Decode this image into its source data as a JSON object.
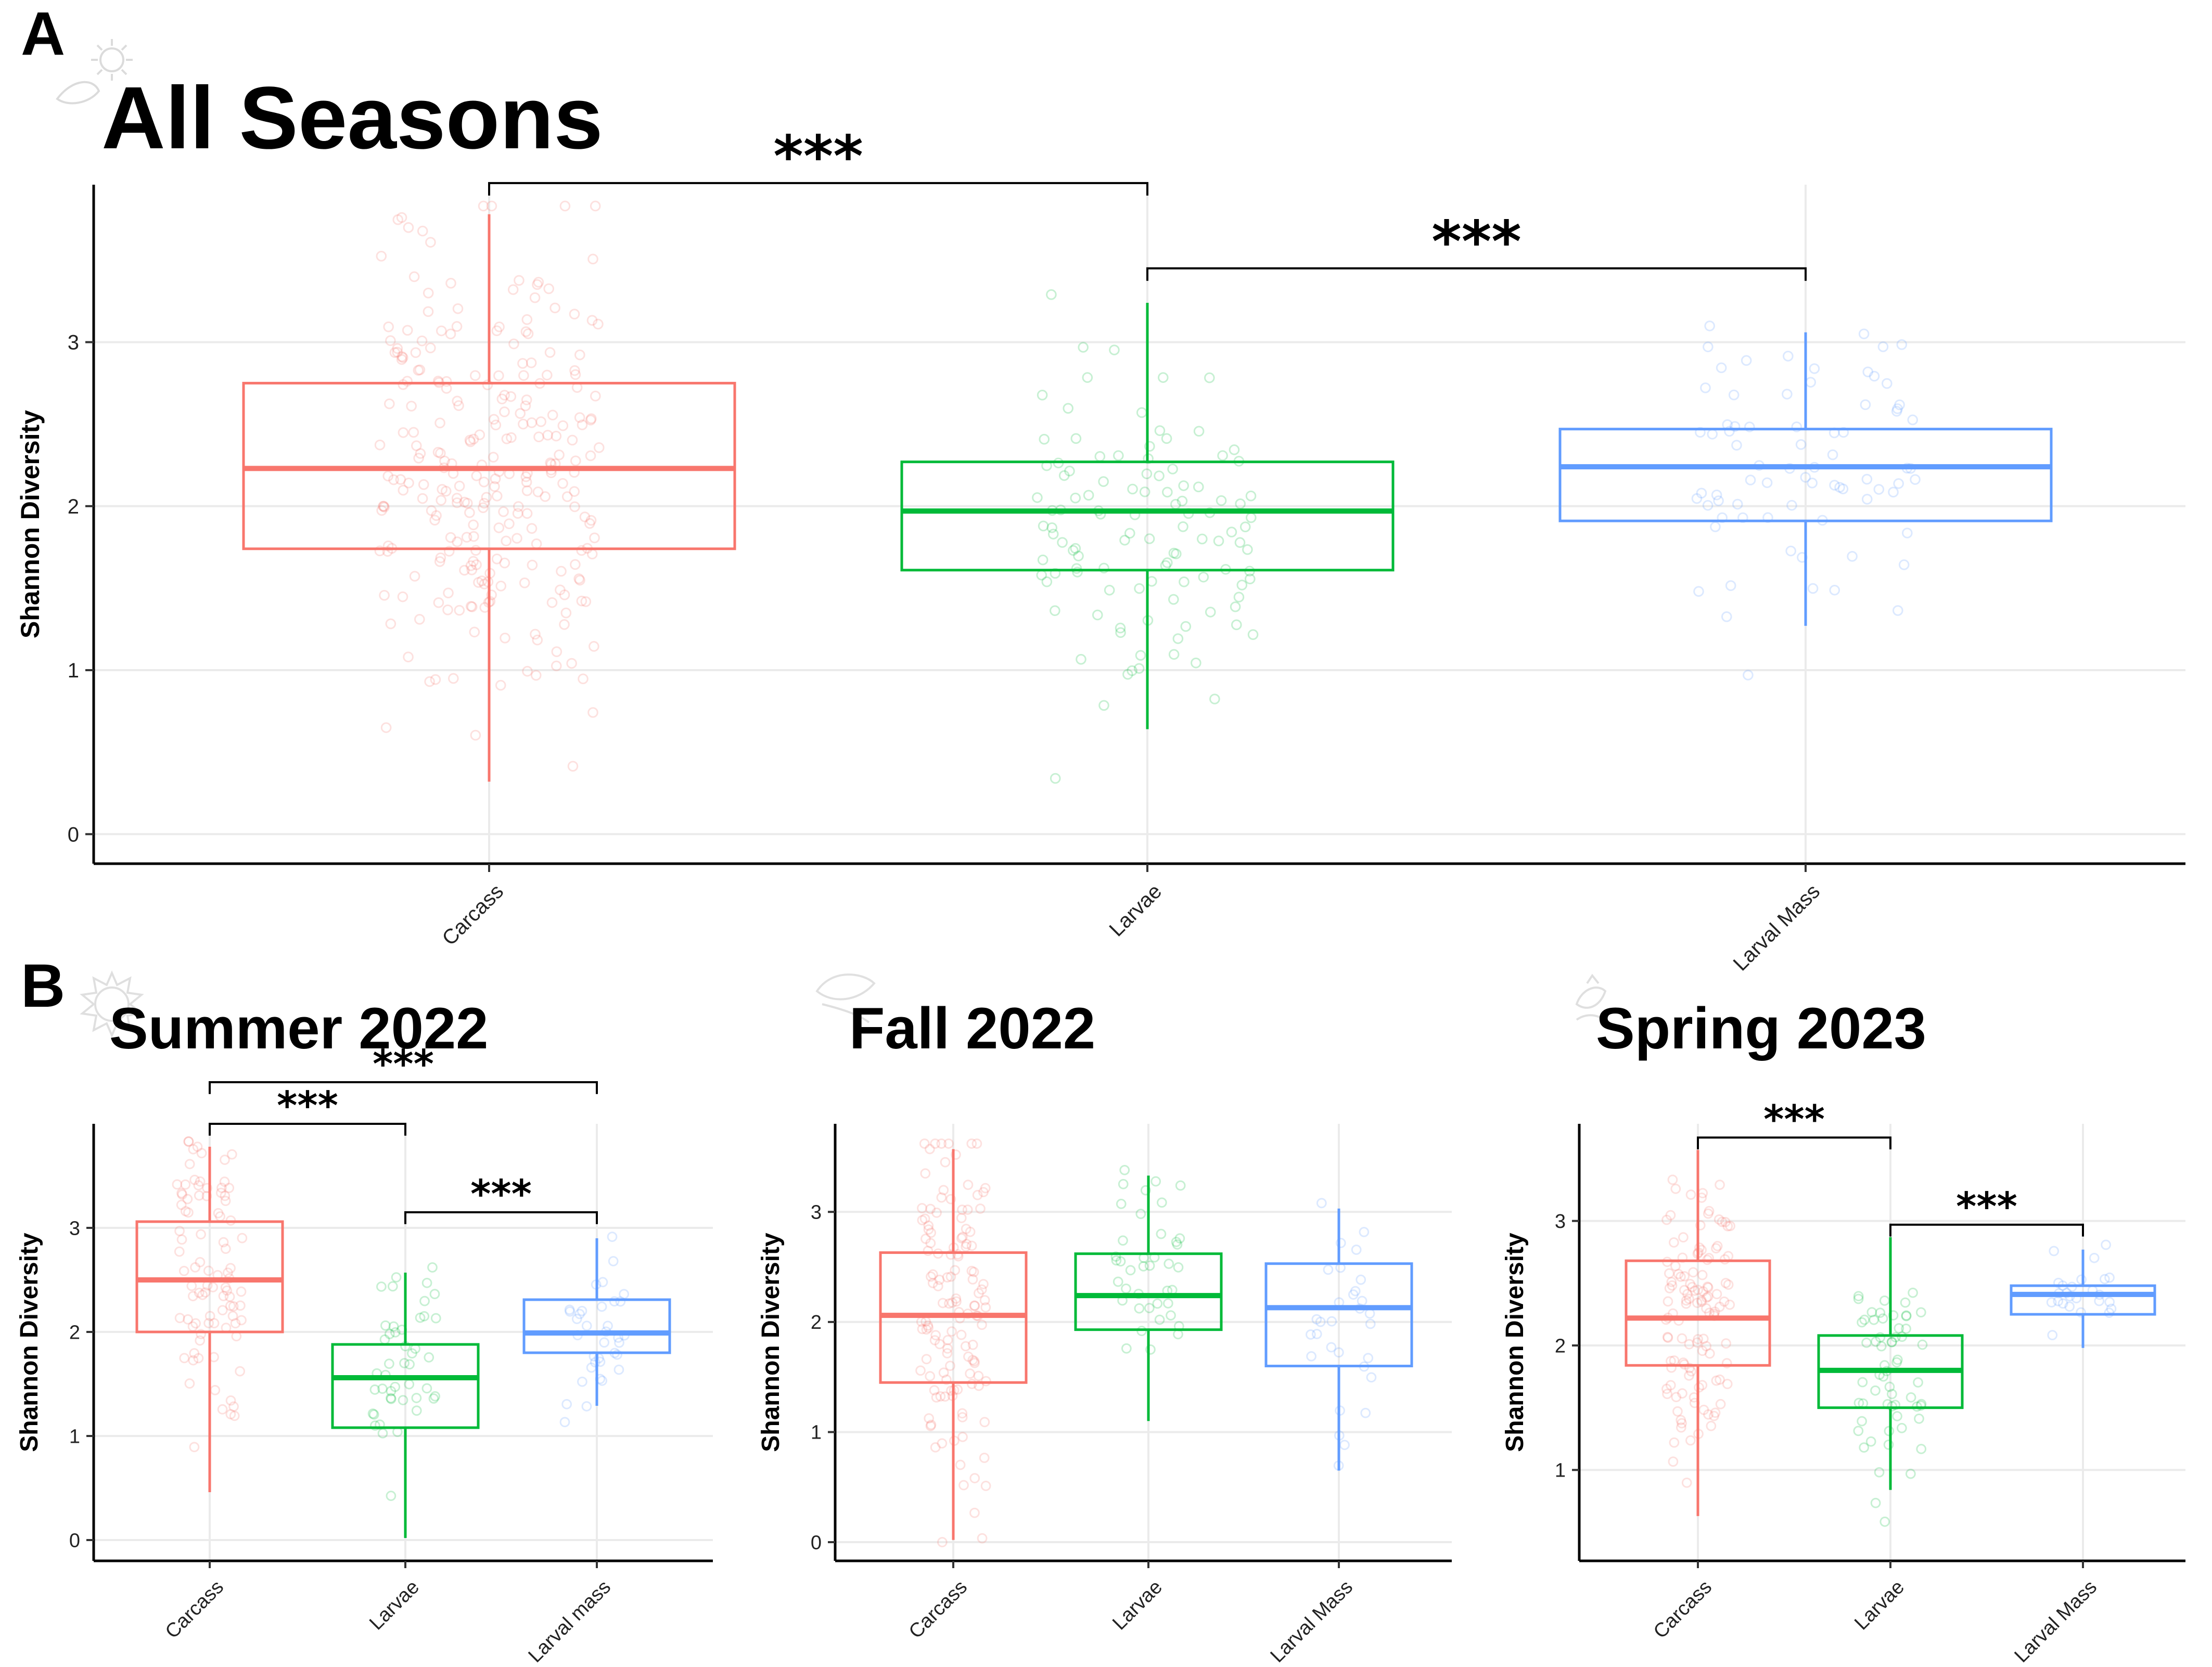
{
  "panels": {
    "A": {
      "letter": "A"
    },
    "B": {
      "letter": "B"
    }
  },
  "chart_data": [
    {
      "type": "box",
      "panel": "A",
      "title": "All Seasons",
      "ylabel": "Shannon Diversity",
      "xlabel": "",
      "categories": [
        "Carcass",
        "Larvae",
        "Larval Mass"
      ],
      "colors": [
        "#F8766D",
        "#00BA38",
        "#619CFF"
      ],
      "ylim": [
        -0.18,
        3.96
      ],
      "yticks": [
        0,
        1,
        2,
        3
      ],
      "grid": true,
      "boxes": [
        {
          "category": "Carcass",
          "min": 0.32,
          "q1": 1.74,
          "median": 2.23,
          "q3": 2.75,
          "max": 3.78
        },
        {
          "category": "Larvae",
          "min": 0.64,
          "q1": 1.61,
          "median": 1.97,
          "q3": 2.27,
          "max": 3.24
        },
        {
          "category": "Larval Mass",
          "min": 1.27,
          "q1": 1.91,
          "median": 2.24,
          "q3": 2.47,
          "max": 3.06
        }
      ],
      "points_n": [
        260,
        110,
        75
      ],
      "significance": [
        {
          "from": "Carcass",
          "to": "Larvae",
          "label": "***",
          "y": 3.97
        },
        {
          "from": "Larvae",
          "to": "Larval Mass",
          "label": "***",
          "y": 3.45
        }
      ]
    },
    {
      "type": "box",
      "panel": "B",
      "title": "Summer 2022",
      "ylabel": "Shannon Diversity",
      "xlabel": "",
      "categories": [
        "Carcass",
        "Larvae",
        "Larval mass"
      ],
      "colors": [
        "#F8766D",
        "#00BA38",
        "#619CFF"
      ],
      "ylim": [
        -0.2,
        4.0
      ],
      "yticks": [
        0,
        1,
        2,
        3
      ],
      "grid": true,
      "boxes": [
        {
          "category": "Carcass",
          "min": 0.46,
          "q1": 2.0,
          "median": 2.5,
          "q3": 3.06,
          "max": 3.78
        },
        {
          "category": "Larvae",
          "min": 0.02,
          "q1": 1.08,
          "median": 1.56,
          "q3": 1.88,
          "max": 2.57
        },
        {
          "category": "Larval mass",
          "min": 1.29,
          "q1": 1.8,
          "median": 1.99,
          "q3": 2.31,
          "max": 2.9
        }
      ],
      "points_n": [
        90,
        45,
        35
      ],
      "significance": [
        {
          "from": "Carcass",
          "to": "Larvae",
          "label": "***",
          "y": 4.0
        },
        {
          "from": "Carcass",
          "to": "Larval mass",
          "label": "***",
          "y": 4.4
        },
        {
          "from": "Larvae",
          "to": "Larval mass",
          "label": "***",
          "y": 3.15
        }
      ]
    },
    {
      "type": "box",
      "panel": "B",
      "title": "Fall 2022",
      "ylabel": "Shannon Diversity",
      "xlabel": "",
      "categories": [
        "Carcass",
        "Larvae",
        "Larval Mass"
      ],
      "colors": [
        "#F8766D",
        "#00BA38",
        "#619CFF"
      ],
      "ylim": [
        -0.17,
        3.8
      ],
      "yticks": [
        0,
        1,
        2,
        3
      ],
      "grid": true,
      "boxes": [
        {
          "category": "Carcass",
          "min": 0.02,
          "q1": 1.45,
          "median": 2.06,
          "q3": 2.63,
          "max": 3.57
        },
        {
          "category": "Larvae",
          "min": 1.1,
          "q1": 1.93,
          "median": 2.24,
          "q3": 2.62,
          "max": 3.33
        },
        {
          "category": "Larval Mass",
          "min": 0.65,
          "q1": 1.6,
          "median": 2.13,
          "q3": 2.53,
          "max": 3.03
        }
      ],
      "points_n": [
        130,
        40,
        30
      ],
      "significance": []
    },
    {
      "type": "box",
      "panel": "B",
      "title": "Spring 2023",
      "ylabel": "Shannon Diversity",
      "xlabel": "",
      "categories": [
        "Carcass",
        "Larvae",
        "Larval Mass"
      ],
      "colors": [
        "#F8766D",
        "#00BA38",
        "#619CFF"
      ],
      "ylim": [
        0.27,
        3.78
      ],
      "yticks": [
        1,
        2,
        3
      ],
      "grid": true,
      "boxes": [
        {
          "category": "Carcass",
          "min": 0.63,
          "q1": 1.84,
          "median": 2.22,
          "q3": 2.68,
          "max": 3.57
        },
        {
          "category": "Larvae",
          "min": 0.84,
          "q1": 1.5,
          "median": 1.8,
          "q3": 2.08,
          "max": 2.87
        },
        {
          "category": "Larval Mass",
          "min": 1.98,
          "q1": 2.25,
          "median": 2.41,
          "q3": 2.48,
          "max": 2.77
        }
      ],
      "points_n": [
        120,
        60,
        25
      ],
      "significance": [
        {
          "from": "Carcass",
          "to": "Larvae",
          "label": "***",
          "y": 3.67
        },
        {
          "from": "Larvae",
          "to": "Larval Mass",
          "label": "***",
          "y": 2.97
        }
      ]
    }
  ]
}
